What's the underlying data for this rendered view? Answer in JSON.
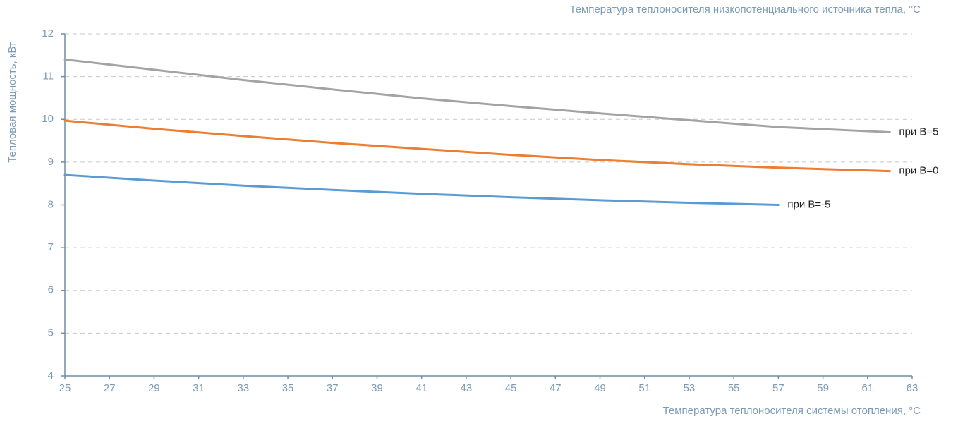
{
  "chart_data": {
    "type": "line",
    "x_label": "Температура теплоносителя системы отопления, °C",
    "y_label": "Тепловая мощность, кВт",
    "annotation": "Температура теплоносителя низкопотенциального источника тепла, °C",
    "x": [
      25,
      29,
      33,
      37,
      41,
      45,
      49,
      53,
      57,
      62
    ],
    "series": [
      {
        "name": "при B=5",
        "color": "#a3a3a3",
        "values": [
          11.4,
          11.16,
          10.92,
          10.7,
          10.49,
          10.31,
          10.14,
          9.98,
          9.82,
          9.7
        ]
      },
      {
        "name": "при B=0",
        "color": "#ed7d31",
        "values": [
          9.97,
          9.78,
          9.61,
          9.45,
          9.31,
          9.17,
          9.05,
          8.95,
          8.87,
          8.79
        ]
      },
      {
        "name": "при B=-5",
        "color": "#5b9bd5",
        "values": [
          8.7,
          8.57,
          8.45,
          8.35,
          8.26,
          8.18,
          8.11,
          8.05,
          8.0,
          null
        ]
      }
    ],
    "xlim": [
      25,
      63
    ],
    "xticks": [
      25,
      27,
      29,
      31,
      33,
      35,
      37,
      39,
      41,
      43,
      45,
      47,
      49,
      51,
      53,
      55,
      57,
      59,
      61,
      63
    ],
    "ylim": [
      4,
      12
    ],
    "yticks": [
      4,
      5,
      6,
      7,
      8,
      9,
      10,
      11,
      12
    ],
    "grid": true
  }
}
